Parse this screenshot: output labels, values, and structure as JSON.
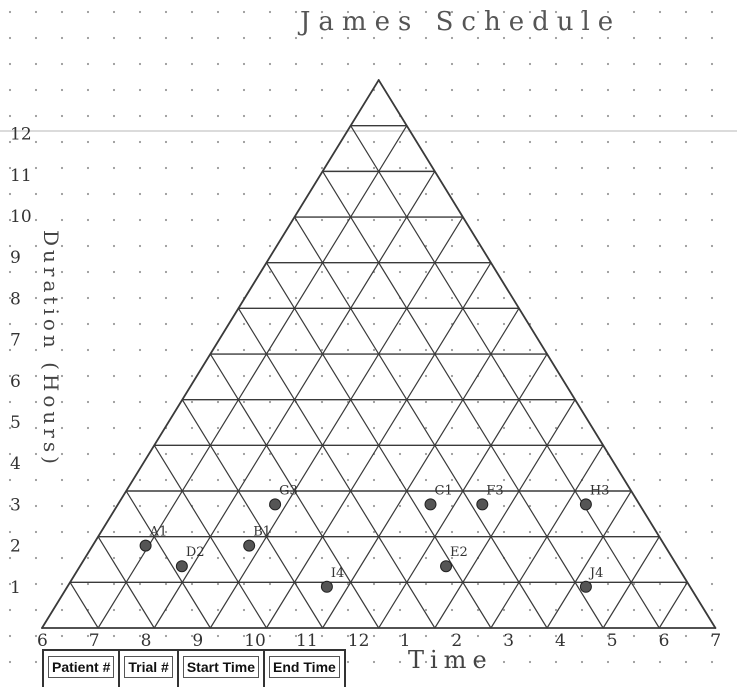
{
  "title": "James Schedule",
  "y_axis_label": "Duration (Hours)",
  "x_axis_label": "Time",
  "y_ticks": [
    "1",
    "2",
    "3",
    "4",
    "5",
    "6",
    "7",
    "8",
    "9",
    "10",
    "11",
    "12"
  ],
  "x_ticks": [
    "6",
    "7",
    "8",
    "9",
    "10",
    "11",
    "12",
    "1",
    "2",
    "3",
    "4",
    "5",
    "6",
    "7"
  ],
  "points": [
    {
      "label": "A1",
      "time": 8,
      "duration": 2
    },
    {
      "label": "B1",
      "time": 10,
      "duration": 2
    },
    {
      "label": "C1",
      "time": 13.5,
      "duration": 3
    },
    {
      "label": "D2",
      "time": 8.7,
      "duration": 1.5
    },
    {
      "label": "E2",
      "time": 13.8,
      "duration": 1.5
    },
    {
      "label": "F3",
      "time": 14.5,
      "duration": 3
    },
    {
      "label": "G3",
      "time": 10.5,
      "duration": 3
    },
    {
      "label": "H3",
      "time": 16.5,
      "duration": 3
    },
    {
      "label": "I4",
      "time": 11.5,
      "duration": 1
    },
    {
      "label": "J4",
      "time": 16.5,
      "duration": 1
    }
  ],
  "table_headers": [
    "Patient #",
    "Trial #",
    "Start Time",
    "End Time"
  ],
  "colors": {
    "ink": "#3a3a3a",
    "grid_dot": "#9a9a9a",
    "point": "#555555"
  }
}
